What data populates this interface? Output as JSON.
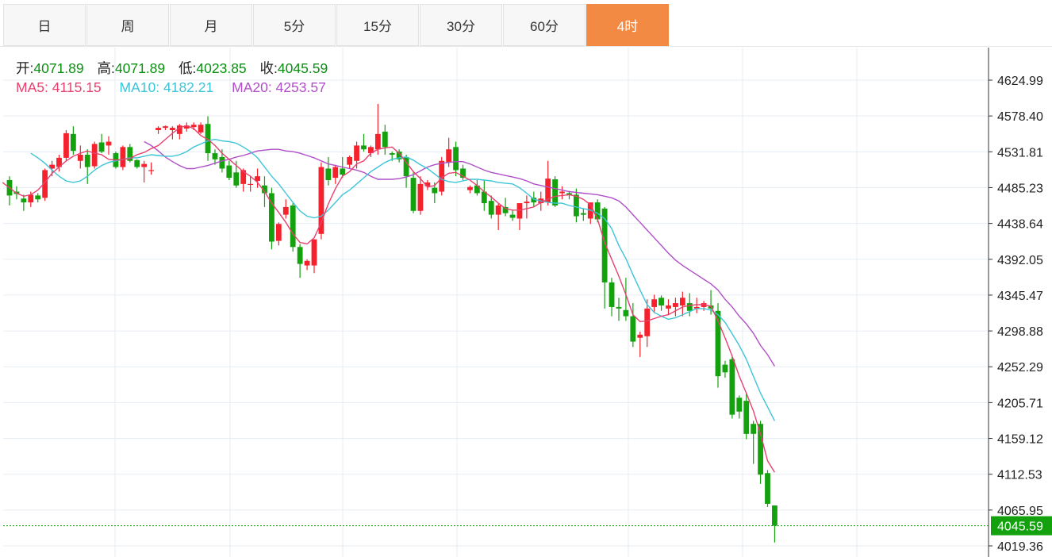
{
  "tabs": [
    {
      "label": "日",
      "active": false
    },
    {
      "label": "周",
      "active": false
    },
    {
      "label": "月",
      "active": false
    },
    {
      "label": "5分",
      "active": false
    },
    {
      "label": "15分",
      "active": false
    },
    {
      "label": "30分",
      "active": false
    },
    {
      "label": "60分",
      "active": false
    },
    {
      "label": "4时",
      "active": true
    }
  ],
  "ohlc": {
    "open_label": "开:",
    "open": "4071.89",
    "high_label": "高:",
    "high": "4071.89",
    "low_label": "低:",
    "low": "4023.85",
    "close_label": "收:",
    "close": "4045.59"
  },
  "ma_legend": {
    "ma5": "MA5: 4115.15",
    "ma10": "MA10: 4182.21",
    "ma20": "MA20: 4253.57"
  },
  "colors": {
    "up": "#f5222d",
    "down": "#13a10e",
    "ma5": "#e8416f",
    "ma10": "#3cc4d9",
    "ma20": "#b04fc7",
    "accent": "#f38a43",
    "last_price": "#13a10e"
  },
  "chart_data": {
    "type": "candlestick",
    "y_ticks": [
      "4624.99",
      "4578.40",
      "4531.81",
      "4485.23",
      "4438.64",
      "4392.05",
      "4345.47",
      "4298.88",
      "4252.29",
      "4205.71",
      "4159.12",
      "4112.53",
      "4065.95",
      "4019.36"
    ],
    "last_price": "4045.59",
    "ylim": [
      4019.36,
      4624.99
    ],
    "grid": true,
    "candles": [
      [
        4495,
        4500,
        4462,
        4475
      ],
      [
        4480,
        4487,
        4470,
        4477
      ],
      [
        4471,
        4476,
        4455,
        4466
      ],
      [
        4466,
        4480,
        4460,
        4476
      ],
      [
        4475,
        4478,
        4466,
        4470
      ],
      [
        4472,
        4510,
        4468,
        4508
      ],
      [
        4510,
        4520,
        4500,
        4515
      ],
      [
        4512,
        4528,
        4506,
        4524
      ],
      [
        4524,
        4560,
        4520,
        4556
      ],
      [
        4555,
        4565,
        4528,
        4533
      ],
      [
        4520,
        4540,
        4510,
        4528
      ],
      [
        4528,
        4535,
        4490,
        4512
      ],
      [
        4513,
        4545,
        4510,
        4542
      ],
      [
        4544,
        4555,
        4530,
        4532
      ],
      [
        4540,
        4552,
        4528,
        4545
      ],
      [
        4530,
        4532,
        4510,
        4512
      ],
      [
        4512,
        4540,
        4508,
        4538
      ],
      [
        4538,
        4542,
        4518,
        4520
      ],
      [
        4521,
        4522,
        4510,
        4512
      ],
      [
        4512,
        4520,
        4492,
        4516
      ],
      [
        4508,
        4518,
        4502,
        4508
      ],
      [
        4560,
        4565,
        4555,
        4563
      ],
      [
        4563,
        4566,
        4560,
        4565
      ],
      [
        4560,
        4565,
        4548,
        4563
      ],
      [
        4555,
        4568,
        4548,
        4566
      ],
      [
        4562,
        4570,
        4558,
        4566
      ],
      [
        4564,
        4570,
        4560,
        4567
      ],
      [
        4557,
        4570,
        4555,
        4567
      ],
      [
        4568,
        4578,
        4520,
        4530
      ],
      [
        4530,
        4535,
        4515,
        4522
      ],
      [
        4525,
        4535,
        4505,
        4510
      ],
      [
        4514,
        4520,
        4495,
        4498
      ],
      [
        4505,
        4520,
        4485,
        4488
      ],
      [
        4490,
        4510,
        4480,
        4508
      ],
      [
        4490,
        4500,
        4480,
        4490
      ],
      [
        4494,
        4510,
        4485,
        4500
      ],
      [
        4488,
        4500,
        4460,
        4478
      ],
      [
        4478,
        4485,
        4405,
        4415
      ],
      [
        4416,
        4440,
        4410,
        4438
      ],
      [
        4450,
        4470,
        4445,
        4460
      ],
      [
        4462,
        4465,
        4402,
        4408
      ],
      [
        4408,
        4412,
        4368,
        4386
      ],
      [
        4384,
        4392,
        4378,
        4390
      ],
      [
        4384,
        4418,
        4374,
        4418
      ],
      [
        4425,
        4518,
        4418,
        4512
      ],
      [
        4510,
        4525,
        4488,
        4495
      ],
      [
        4498,
        4515,
        4490,
        4512
      ],
      [
        4510,
        4525,
        4498,
        4502
      ],
      [
        4515,
        4527,
        4510,
        4525
      ],
      [
        4520,
        4545,
        4510,
        4540
      ],
      [
        4540,
        4555,
        4532,
        4535
      ],
      [
        4530,
        4540,
        4525,
        4538
      ],
      [
        4535,
        4594,
        4528,
        4555
      ],
      [
        4558,
        4567,
        4528,
        4538
      ],
      [
        4530,
        4532,
        4520,
        4528
      ],
      [
        4532,
        4535,
        4518,
        4522
      ],
      [
        4525,
        4528,
        4485,
        4500
      ],
      [
        4498,
        4505,
        4452,
        4455
      ],
      [
        4455,
        4500,
        4450,
        4490
      ],
      [
        4487,
        4495,
        4482,
        4492
      ],
      [
        4485,
        4492,
        4465,
        4478
      ],
      [
        4480,
        4525,
        4475,
        4520
      ],
      [
        4518,
        4550,
        4512,
        4535
      ],
      [
        4538,
        4545,
        4500,
        4508
      ],
      [
        4510,
        4515,
        4495,
        4498
      ],
      [
        4482,
        4488,
        4478,
        4486
      ],
      [
        4488,
        4495,
        4475,
        4478
      ],
      [
        4480,
        4495,
        4455,
        4465
      ],
      [
        4468,
        4475,
        4445,
        4450
      ],
      [
        4450,
        4465,
        4430,
        4462
      ],
      [
        4460,
        4472,
        4448,
        4452
      ],
      [
        4450,
        4456,
        4442,
        4446
      ],
      [
        4445,
        4465,
        4430,
        4465
      ],
      [
        4465,
        4475,
        4445,
        4467
      ],
      [
        4472,
        4480,
        4460,
        4466
      ],
      [
        4465,
        4480,
        4455,
        4471
      ],
      [
        4466,
        4520,
        4462,
        4497
      ],
      [
        4496,
        4500,
        4460,
        4462
      ],
      [
        4478,
        4487,
        4470,
        4480
      ],
      [
        4478,
        4481,
        4470,
        4476
      ],
      [
        4476,
        4484,
        4440,
        4448
      ],
      [
        4452,
        4458,
        4442,
        4450
      ],
      [
        4445,
        4462,
        4438,
        4466
      ],
      [
        4466,
        4470,
        4440,
        4444
      ],
      [
        4458,
        4460,
        4328,
        4362
      ],
      [
        4362,
        4368,
        4318,
        4330
      ],
      [
        4330,
        4342,
        4312,
        4328
      ],
      [
        4326,
        4368,
        4312,
        4318
      ],
      [
        4318,
        4335,
        4278,
        4285
      ],
      [
        4290,
        4298,
        4265,
        4294
      ],
      [
        4292,
        4340,
        4278,
        4328
      ],
      [
        4330,
        4346,
        4322,
        4340
      ],
      [
        4342,
        4345,
        4325,
        4332
      ],
      [
        4328,
        4340,
        4320,
        4332
      ],
      [
        4330,
        4342,
        4318,
        4335
      ],
      [
        4332,
        4350,
        4318,
        4342
      ],
      [
        4335,
        4348,
        4318,
        4325
      ],
      [
        4328,
        4342,
        4322,
        4330
      ],
      [
        4330,
        4338,
        4325,
        4335
      ],
      [
        4332,
        4352,
        4320,
        4328
      ],
      [
        4325,
        4335,
        4225,
        4240
      ],
      [
        4255,
        4260,
        4238,
        4245
      ],
      [
        4262,
        4265,
        4185,
        4190
      ],
      [
        4212,
        4215,
        4185,
        4194
      ],
      [
        4208,
        4218,
        4158,
        4165
      ],
      [
        4178,
        4182,
        4126,
        4165
      ],
      [
        4178,
        4182,
        4100,
        4112
      ],
      [
        4114,
        4118,
        4070,
        4074
      ],
      [
        4071.89,
        4071.89,
        4023.85,
        4045.59
      ]
    ],
    "ma5": [
      4492,
      4485,
      4478,
      4474,
      4476,
      4482,
      4492,
      4504,
      4512,
      4520,
      4526,
      4530,
      4533,
      4530,
      4528,
      4522,
      4521,
      4522,
      4523,
      4528,
      4531,
      4536,
      4540,
      4548,
      4556,
      4563,
      4566,
      4562,
      4553,
      4548,
      4540,
      4530,
      4522,
      4514,
      4506,
      4500,
      4492,
      4480,
      4465,
      4453,
      4440,
      4425,
      4414,
      4412,
      4420,
      4440,
      4464,
      4484,
      4500,
      4506,
      4516,
      4520,
      4530,
      4535,
      4537,
      4538,
      4530,
      4518,
      4506,
      4497,
      4486,
      4488,
      4498,
      4504,
      4505,
      4500,
      4495,
      4488,
      4480,
      4473,
      4465,
      4458,
      4456,
      4456,
      4458,
      4460,
      4466,
      4470,
      4474,
      4475,
      4476,
      4474,
      4470,
      4463,
      4444,
      4414,
      4392,
      4370,
      4346,
      4320,
      4311,
      4312,
      4315,
      4318,
      4320,
      4325,
      4330,
      4332,
      4333,
      4333,
      4331,
      4312,
      4290,
      4266,
      4240,
      4218,
      4195,
      4165,
      4130,
      4115
    ],
    "ma10": [
      4530,
      4524,
      4517,
      4508,
      4500,
      4494,
      4492,
      4494,
      4500,
      4508,
      4514,
      4518,
      4520,
      4522,
      4524,
      4524,
      4526,
      4528,
      4527,
      4526,
      4526,
      4528,
      4532,
      4538,
      4542,
      4546,
      4548,
      4546,
      4545,
      4543,
      4538,
      4532,
      4524,
      4512,
      4500,
      4490,
      4478,
      4466,
      4455,
      4448,
      4446,
      4448,
      4456,
      4466,
      4476,
      4482,
      4490,
      4498,
      4506,
      4512,
      4518,
      4522,
      4524,
      4525,
      4521,
      4515,
      4510,
      4503,
      4496,
      4493,
      4492,
      4494,
      4496,
      4496,
      4495,
      4494,
      4492,
      4491,
      4490,
      4485,
      4478,
      4470,
      4468,
      4466,
      4465,
      4465,
      4462,
      4460,
      4458,
      4456,
      4452,
      4445,
      4432,
      4410,
      4393,
      4372,
      4352,
      4333,
      4323,
      4318,
      4314,
      4316,
      4320,
      4324,
      4328,
      4328,
      4326,
      4320,
      4310,
      4295,
      4280,
      4262,
      4240,
      4218,
      4200,
      4182
    ],
    "ma20": [
      4545,
      4540,
      4533,
      4525,
      4519,
      4514,
      4510,
      4510,
      4512,
      4514,
      4517,
      4520,
      4522,
      4525,
      4527,
      4530,
      4533,
      4534,
      4535,
      4535,
      4533,
      4532,
      4530,
      4527,
      4524,
      4520,
      4516,
      4514,
      4512,
      4510,
      4508,
      4505,
      4500,
      4496,
      4496,
      4496,
      4497,
      4499,
      4502,
      4507,
      4512,
      4515,
      4517,
      4518,
      4519,
      4519,
      4516,
      4512,
      4508,
      4505,
      4503,
      4501,
      4499,
      4497,
      4494,
      4490,
      4488,
      4486,
      4484,
      4482,
      4480,
      4479,
      4478,
      4477,
      4476,
      4474,
      4472,
      4468,
      4460,
      4450,
      4440,
      4430,
      4420,
      4410,
      4400,
      4391,
      4384,
      4378,
      4372,
      4366,
      4360,
      4352,
      4340,
      4330,
      4318,
      4308,
      4296,
      4280,
      4268,
      4253
    ]
  }
}
